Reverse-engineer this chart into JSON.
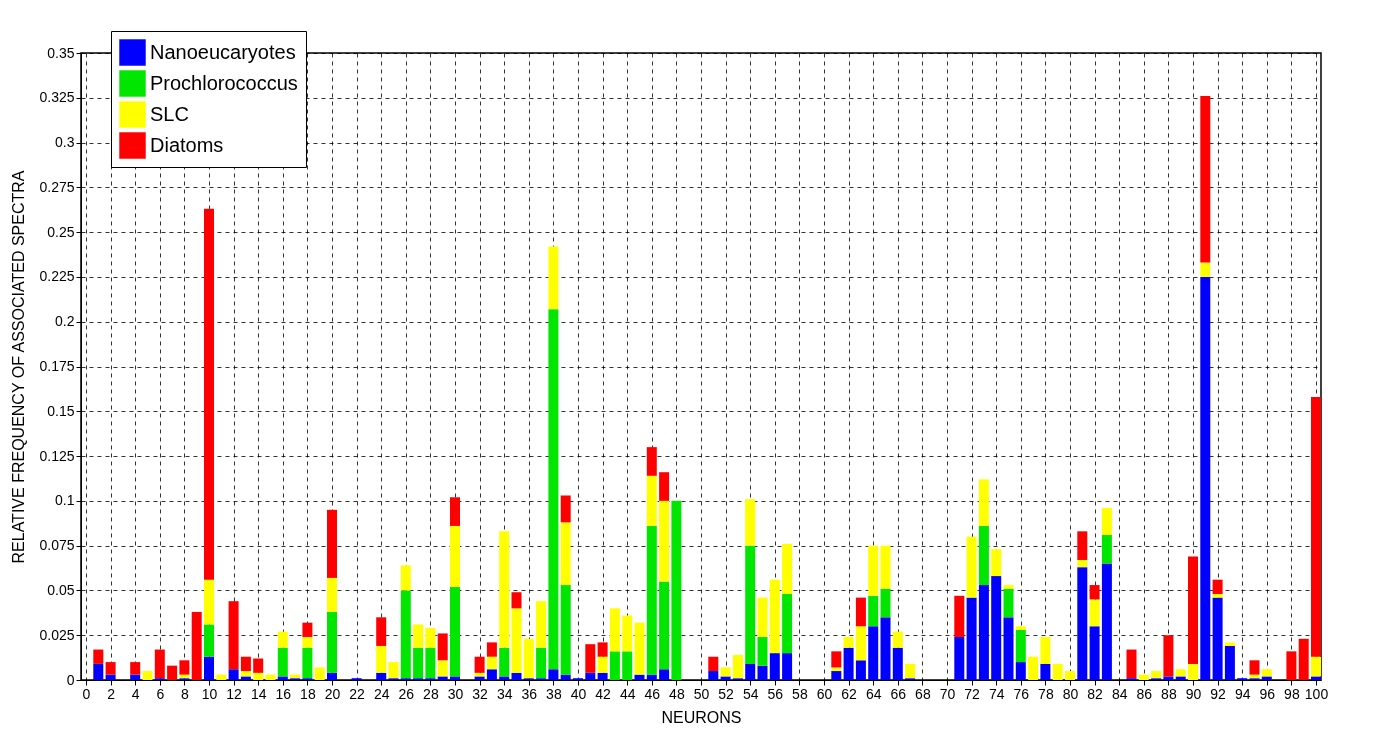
{
  "chart_data": {
    "type": "bar",
    "stacked": true,
    "xlabel": "NEURONS",
    "ylabel": "RELATIVE FREQUENCY OF ASSOCIATED SPECTRA",
    "legend": "top left",
    "grid": true,
    "xlim": [
      0,
      100
    ],
    "xticks": [
      0,
      2,
      4,
      6,
      8,
      10,
      12,
      14,
      16,
      18,
      20,
      22,
      24,
      26,
      28,
      30,
      32,
      34,
      36,
      38,
      40,
      42,
      44,
      46,
      48,
      50,
      52,
      54,
      56,
      58,
      60,
      62,
      64,
      66,
      68,
      70,
      72,
      74,
      76,
      78,
      80,
      82,
      84,
      86,
      88,
      90,
      92,
      94,
      96,
      98,
      100
    ],
    "ylim": [
      0,
      0.35
    ],
    "yticks": [
      0,
      0.025,
      0.05,
      0.075,
      0.1,
      0.125,
      0.15,
      0.175,
      0.2,
      0.225,
      0.25,
      0.275,
      0.3,
      0.325,
      0.35
    ],
    "x": [
      1,
      2,
      3,
      4,
      5,
      6,
      7,
      8,
      9,
      10,
      11,
      12,
      13,
      14,
      15,
      16,
      17,
      18,
      19,
      20,
      21,
      22,
      23,
      24,
      25,
      26,
      27,
      28,
      29,
      30,
      31,
      32,
      33,
      34,
      35,
      36,
      37,
      38,
      39,
      40,
      41,
      42,
      43,
      44,
      45,
      46,
      47,
      48,
      49,
      50,
      51,
      52,
      53,
      54,
      55,
      56,
      57,
      58,
      59,
      60,
      61,
      62,
      63,
      64,
      65,
      66,
      67,
      68,
      69,
      70,
      71,
      72,
      73,
      74,
      75,
      76,
      77,
      78,
      79,
      80,
      81,
      82,
      83,
      84,
      85,
      86,
      87,
      88,
      89,
      90,
      91,
      92,
      93,
      94,
      95,
      96,
      97,
      98,
      99,
      100
    ],
    "series": [
      {
        "name": "Nanoeucaryotes",
        "color": "#0000ff",
        "values": [
          0.009,
          0.003,
          0,
          0.003,
          0,
          0.001,
          0,
          0.001,
          0,
          0.013,
          0,
          0.006,
          0.002,
          0,
          0,
          0.002,
          0.001,
          0.001,
          0,
          0.004,
          0,
          0.001,
          0,
          0.004,
          0.001,
          0.001,
          0.001,
          0.001,
          0.002,
          0.002,
          0,
          0.002,
          0.006,
          0.002,
          0.004,
          0.001,
          0.001,
          0.006,
          0.003,
          0.001,
          0.004,
          0.004,
          0,
          0,
          0.003,
          0.003,
          0.006,
          0,
          0,
          0,
          0.005,
          0.002,
          0.001,
          0.009,
          0.008,
          0.015,
          0.015,
          0,
          0,
          0,
          0.005,
          0.018,
          0.011,
          0.03,
          0.035,
          0.018,
          0.001,
          0,
          0,
          0,
          0.024,
          0.046,
          0.053,
          0.058,
          0.035,
          0.01,
          0,
          0.009,
          0,
          0,
          0.063,
          0.03,
          0.065,
          0,
          0.001,
          0,
          0.001,
          0.002,
          0.002,
          0,
          0.225,
          0.046,
          0.019,
          0.001,
          0.001,
          0.002,
          0,
          0,
          0,
          0.002
        ]
      },
      {
        "name": "Prochlorococcus",
        "color": "#00e600",
        "values": [
          0,
          0,
          0,
          0,
          0,
          0,
          0,
          0,
          0,
          0.018,
          0,
          0,
          0,
          0,
          0,
          0.016,
          0,
          0.017,
          0,
          0.034,
          0,
          0,
          0,
          0,
          0,
          0.049,
          0.017,
          0.017,
          0,
          0.05,
          0,
          0,
          0,
          0.016,
          0,
          0,
          0.017,
          0.201,
          0.05,
          0,
          0,
          0,
          0.016,
          0.016,
          0,
          0.083,
          0.049,
          0.1,
          0,
          0,
          0,
          0,
          0,
          0.066,
          0.016,
          0,
          0.033,
          0,
          0,
          0,
          0,
          0,
          0,
          0.017,
          0.016,
          0,
          0,
          0,
          0,
          0,
          0,
          0,
          0.033,
          0,
          0.016,
          0.018,
          0,
          0,
          0,
          0,
          0,
          0,
          0.016,
          0,
          0,
          0,
          0,
          0,
          0,
          0,
          0,
          0,
          0,
          0,
          0,
          0,
          0,
          0,
          0,
          0
        ]
      },
      {
        "name": "SLC",
        "color": "#ffff00",
        "values": [
          0,
          0,
          0,
          0,
          0.005,
          0,
          0,
          0.002,
          0,
          0.025,
          0.003,
          0,
          0.003,
          0.004,
          0.003,
          0.009,
          0.002,
          0.006,
          0.007,
          0.019,
          0,
          0,
          0,
          0.015,
          0.009,
          0.014,
          0.013,
          0.011,
          0.009,
          0.034,
          0,
          0.002,
          0.007,
          0.065,
          0.036,
          0.022,
          0.026,
          0.035,
          0.035,
          0,
          0,
          0.009,
          0.024,
          0.02,
          0.029,
          0.028,
          0.045,
          0,
          0,
          0,
          0,
          0.005,
          0.013,
          0.026,
          0.022,
          0.041,
          0.028,
          0,
          0,
          0,
          0.002,
          0.006,
          0.019,
          0.028,
          0.024,
          0.009,
          0.008,
          0,
          0,
          0,
          0,
          0.034,
          0.026,
          0.015,
          0.002,
          0.002,
          0.013,
          0.015,
          0.009,
          0.005,
          0.004,
          0.015,
          0.015,
          0,
          0,
          0.003,
          0.004,
          0,
          0.004,
          0.009,
          0.008,
          0.002,
          0.002,
          0,
          0.002,
          0.004,
          0,
          0,
          0,
          0.011
        ]
      },
      {
        "name": "Diatoms",
        "color": "#ff0000",
        "values": [
          0.008,
          0.007,
          0,
          0.007,
          0,
          0.016,
          0.008,
          0.008,
          0.038,
          0.207,
          0,
          0.038,
          0.008,
          0.008,
          0,
          0,
          0,
          0.008,
          0,
          0.038,
          0,
          0,
          0,
          0.016,
          0,
          0,
          0,
          0,
          0.015,
          0.016,
          0,
          0.009,
          0.008,
          0,
          0.009,
          0,
          0,
          0,
          0.015,
          0,
          0.016,
          0.008,
          0,
          0,
          0,
          0.016,
          0.016,
          0,
          0,
          0,
          0.008,
          0,
          0,
          0,
          0,
          0,
          0,
          0,
          0,
          0,
          0.009,
          0,
          0.016,
          0,
          0,
          0,
          0,
          0,
          0,
          0,
          0.023,
          0,
          0,
          0,
          0,
          0,
          0,
          0,
          0,
          0,
          0.016,
          0.008,
          0,
          0,
          0.016,
          0,
          0,
          0.023,
          0,
          0.06,
          0.093,
          0.008,
          0,
          0,
          0.008,
          0,
          0,
          0.016,
          0.023,
          0.145
        ]
      }
    ]
  }
}
